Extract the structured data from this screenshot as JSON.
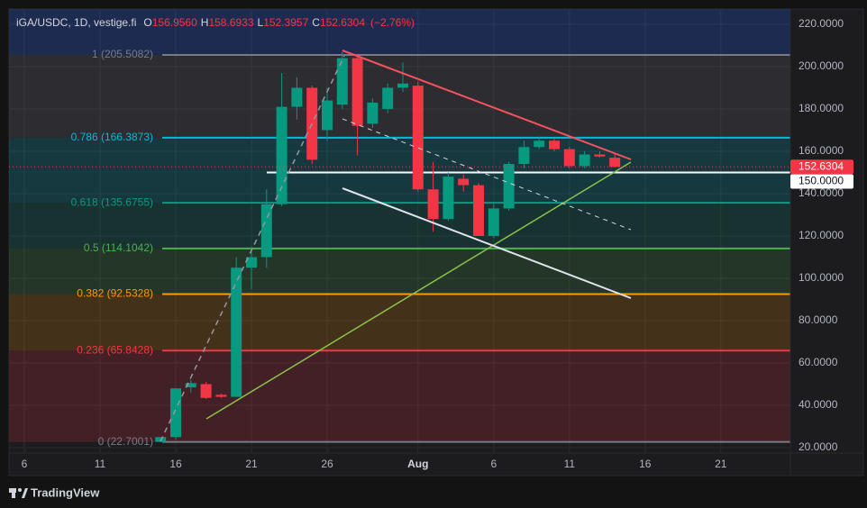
{
  "chart_data": {
    "type": "candlestick",
    "title": "iGA/USDC, 1D, vestige.fi",
    "ohlc_header": [
      {
        "key": "O",
        "value": "156.9560"
      },
      {
        "key": "H",
        "value": "158.6933"
      },
      {
        "key": "L",
        "value": "152.3957"
      },
      {
        "key": "C",
        "value": "152.6304"
      }
    ],
    "change": "(−2.76%)",
    "categories": [
      "6",
      null,
      null,
      null,
      null,
      "11",
      null,
      null,
      null,
      null,
      "16",
      null,
      null,
      null,
      null,
      "21",
      null,
      null,
      null,
      null,
      "26",
      null,
      null,
      null,
      null,
      null,
      "Aug",
      null,
      null,
      null,
      null,
      "6",
      null,
      null,
      null,
      null,
      "11",
      null,
      null,
      null,
      null,
      "16",
      null,
      null,
      null,
      null,
      "21",
      null,
      null,
      null,
      null
    ],
    "open": [
      null,
      null,
      null,
      null,
      null,
      null,
      null,
      null,
      null,
      22.7,
      25,
      48.5,
      50,
      45,
      44,
      105,
      110,
      135,
      181,
      190,
      170,
      182,
      204,
      173,
      180,
      190,
      191,
      142,
      128,
      147,
      144,
      120,
      133,
      154,
      162,
      165,
      161,
      153,
      158.5,
      156.956,
      null,
      null,
      null,
      null,
      null,
      null,
      null,
      null,
      null,
      null,
      null
    ],
    "high": [
      null,
      null,
      null,
      null,
      null,
      null,
      null,
      null,
      null,
      25,
      48,
      52,
      51,
      45.5,
      110,
      115,
      142,
      197,
      195,
      191,
      190,
      207,
      206,
      185,
      192,
      202,
      193,
      155,
      150,
      149,
      145,
      135,
      155,
      165,
      167,
      166,
      162,
      160,
      160,
      158.6933,
      null,
      null,
      null,
      null,
      null,
      null,
      null,
      null,
      null,
      null,
      null
    ],
    "low": [
      null,
      null,
      null,
      null,
      null,
      null,
      null,
      null,
      null,
      22.7,
      24,
      46,
      43,
      43.5,
      44,
      95,
      105,
      134,
      175,
      154,
      165,
      180,
      158,
      171,
      178,
      188,
      141,
      122,
      127,
      141,
      120,
      119,
      132,
      152,
      161,
      160,
      152,
      152,
      157,
      152.3957,
      null,
      null,
      null,
      null,
      null,
      null,
      null,
      null,
      null,
      null,
      null
    ],
    "close": [
      null,
      null,
      null,
      null,
      null,
      null,
      null,
      null,
      null,
      25,
      48,
      50.5,
      43.5,
      44,
      105,
      110,
      135,
      181,
      190,
      156,
      184,
      204,
      172,
      183,
      190,
      192,
      142,
      128,
      148,
      144,
      120,
      133,
      154,
      162,
      165,
      161,
      153,
      158.5,
      157.5,
      152.6304,
      null,
      null,
      null,
      null,
      null,
      null,
      null,
      null,
      null,
      null,
      null
    ],
    "up_color": "#089981",
    "down_color": "#f23645",
    "ylim": [
      17.45,
      227.2
    ],
    "yticks": [
      {
        "value": 220,
        "label": "220.0000"
      },
      {
        "value": 200,
        "label": "200.0000"
      },
      {
        "value": 180,
        "label": "180.0000"
      },
      {
        "value": 160,
        "label": "160.0000"
      },
      {
        "value": 140,
        "label": "140.0000"
      },
      {
        "value": 120,
        "label": "120.0000"
      },
      {
        "value": 100,
        "label": "100.0000"
      },
      {
        "value": 80,
        "label": "80.0000"
      },
      {
        "value": 60,
        "label": "60.0000"
      },
      {
        "value": 40,
        "label": "40.0000"
      },
      {
        "value": 20,
        "label": "20.0000"
      }
    ],
    "grid": true,
    "fib_levels": [
      {
        "label": "1 (205.5082)",
        "value": 205.5082,
        "color": "#787b86"
      },
      {
        "label": "0.786 (166.3873)",
        "value": 166.3873,
        "color": "#00bcd4"
      },
      {
        "label": "0.618 (135.6755)",
        "value": 135.6755,
        "color": "#089981"
      },
      {
        "label": "0.5 (114.1042)",
        "value": 114.1042,
        "color": "#4caf50"
      },
      {
        "label": "0.382 (92.5328)",
        "value": 92.5328,
        "color": "#ff9800"
      },
      {
        "label": "0.236 (65.8428)",
        "value": 65.8428,
        "color": "#f23645"
      },
      {
        "label": "0 (22.7001)",
        "value": 22.7001,
        "color": "#787b86"
      }
    ],
    "upper_fill": "#2962ff",
    "horizontal_line": {
      "value": 150,
      "label": "150.0000"
    },
    "brand": "TradingView"
  }
}
